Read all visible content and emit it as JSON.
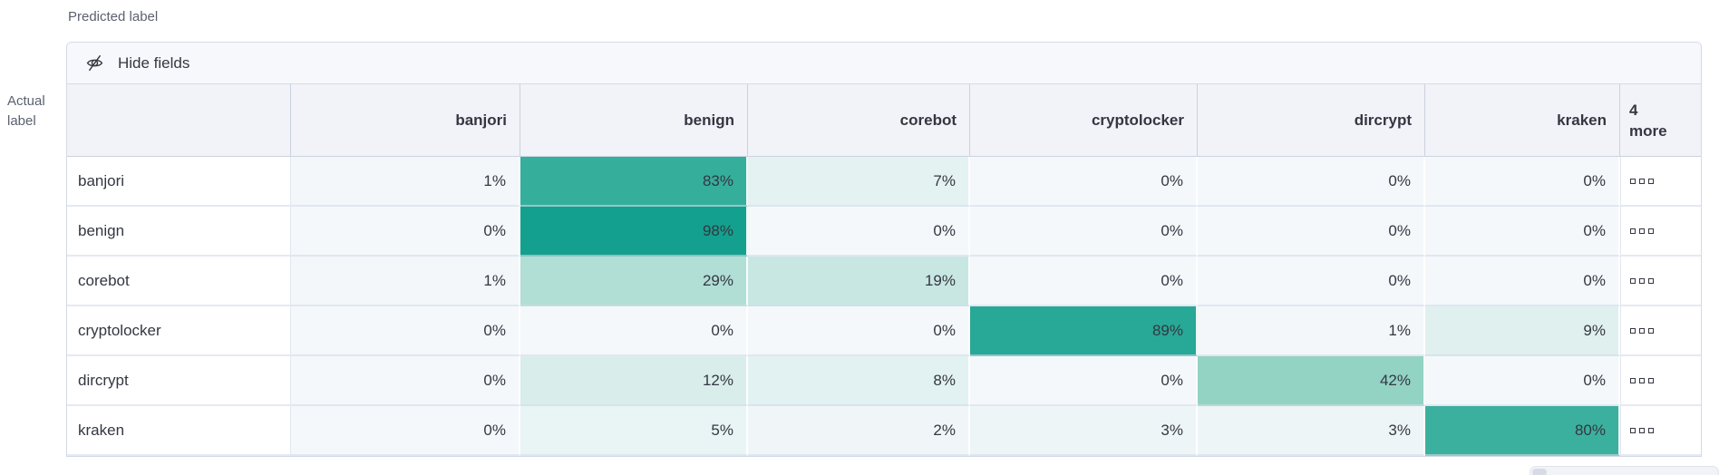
{
  "axis": {
    "predicted": "Predicted label",
    "actual_line1": "Actual",
    "actual_line2": "label"
  },
  "toolbar": {
    "hide_fields_label": "Hide fields"
  },
  "icons": {
    "hide_fields": "eye-closed-icon",
    "more_cells": "boxes-horizontal-icon"
  },
  "chart_data": {
    "type": "heatmap",
    "title": "Confusion matrix: Actual label vs Predicted label",
    "columns": [
      "banjori",
      "benign",
      "corebot",
      "cryptolocker",
      "dircrypt",
      "kraken"
    ],
    "more_column": {
      "count": "4",
      "word": "more",
      "label": "4 more"
    },
    "rows": [
      {
        "label": "banjori",
        "values": [
          1,
          83,
          7,
          0,
          0,
          0
        ]
      },
      {
        "label": "benign",
        "values": [
          0,
          98,
          0,
          0,
          0,
          0
        ]
      },
      {
        "label": "corebot",
        "values": [
          1,
          29,
          19,
          0,
          0,
          0
        ]
      },
      {
        "label": "cryptolocker",
        "values": [
          0,
          0,
          0,
          89,
          1,
          9
        ]
      },
      {
        "label": "dircrypt",
        "values": [
          0,
          12,
          8,
          0,
          42,
          0
        ]
      },
      {
        "label": "kraken",
        "values": [
          0,
          5,
          2,
          3,
          3,
          80
        ]
      }
    ],
    "value_suffix": "%",
    "value_range": [
      0,
      100
    ],
    "color_scale": {
      "stops": [
        {
          "t": 0.0,
          "color": "#F5F8FB"
        },
        {
          "t": 0.5,
          "color": "#7FCCBA"
        },
        {
          "t": 1.0,
          "color": "#109E8C"
        }
      ],
      "text_color": "#343741"
    }
  }
}
